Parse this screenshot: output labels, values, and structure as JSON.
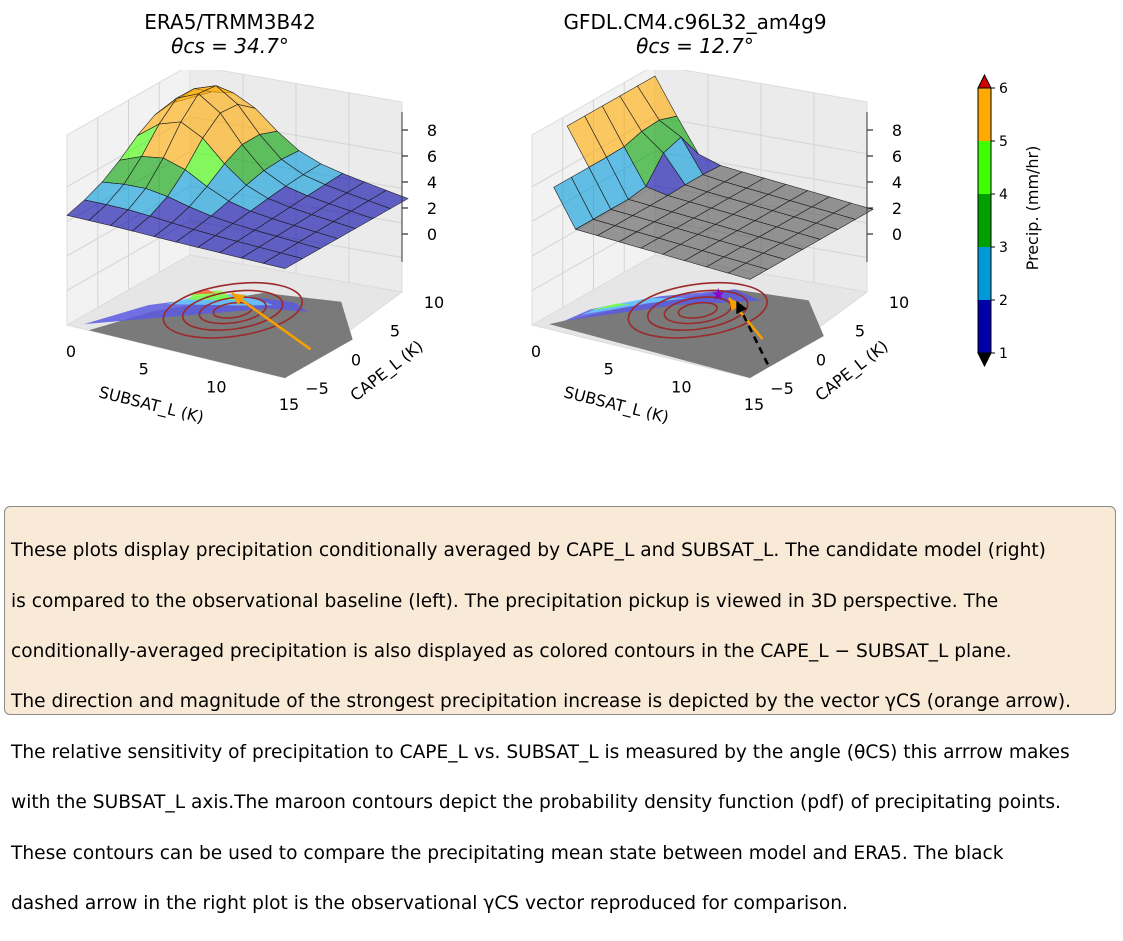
{
  "panels": [
    {
      "title": "ERA5/TRMM3B42",
      "theta_label": "θcs = 34.7°",
      "theta_cs_deg": 34.7
    },
    {
      "title": "GFDL.CM4.c96L32_am4g9",
      "theta_label": "θcs = 12.7°",
      "theta_cs_deg": 12.7
    }
  ],
  "chart_data": [
    {
      "type": "surface3d",
      "title": "ERA5/TRMM3B42",
      "subtitle": "θcs = 34.7°",
      "xlabel": "SUBSAT_L (K)",
      "ylabel": "CAPE_L (K)",
      "x_ticks": [
        "0",
        "5",
        "10",
        "15"
      ],
      "y_ticks": [
        "−5",
        "0",
        "5",
        "10"
      ],
      "z_ticks": [
        "0",
        "2",
        "4",
        "6",
        "8"
      ],
      "xlim": [
        0,
        15
      ],
      "ylim": [
        -5,
        10
      ],
      "zlim": [
        0,
        8
      ],
      "arrow": "orange"
    },
    {
      "type": "surface3d",
      "title": "GFDL.CM4.c96L32_am4g9",
      "subtitle": "θcs = 12.7°",
      "xlabel": "SUBSAT_L (K)",
      "ylabel": "CAPE_L (K)",
      "x_ticks": [
        "0",
        "5",
        "10",
        "15"
      ],
      "y_ticks": [
        "−5",
        "0",
        "5",
        "10"
      ],
      "z_ticks": [
        "0",
        "2",
        "4",
        "6",
        "8"
      ],
      "xlim": [
        0,
        15
      ],
      "ylim": [
        -5,
        10
      ],
      "zlim": [
        0,
        8
      ],
      "arrow": "orange",
      "reference_arrow": "black dashed"
    }
  ],
  "colorbar": {
    "label": "Precip. (mm/hr)",
    "ticks": [
      "1",
      "2",
      "3",
      "4",
      "5",
      "6"
    ],
    "colors": [
      "#0000a8",
      "#009ad8",
      "#00a000",
      "#40ff00",
      "#ffaa00"
    ],
    "under_color": "#000000",
    "over_color": "#d00000"
  },
  "caption": {
    "lines": [
      "These plots display precipitation conditionally averaged by CAPE_L and SUBSAT_L. The candidate model (right)",
      "is compared to the observational baseline (left). The precipitation pickup is viewed in 3D perspective. The",
      "conditionally-averaged precipitation is also displayed as colored contours in the CAPE_L − SUBSAT_L plane.",
      "The direction and magnitude of the strongest precipitation increase is depicted by the vector γCS (orange arrow).",
      "The relative sensitivity of precipitation to CAPE_L vs. SUBSAT_L is measured by the angle (θCS) this arrrow makes",
      "with the SUBSAT_L axis.The maroon contours depict the probability density function (pdf) of precipitating points.",
      "These contours can be used to compare the precipitating mean state between model and ERA5. The black",
      "dashed arrow in the right plot is the observational γCS vector reproduced for comparison."
    ]
  }
}
